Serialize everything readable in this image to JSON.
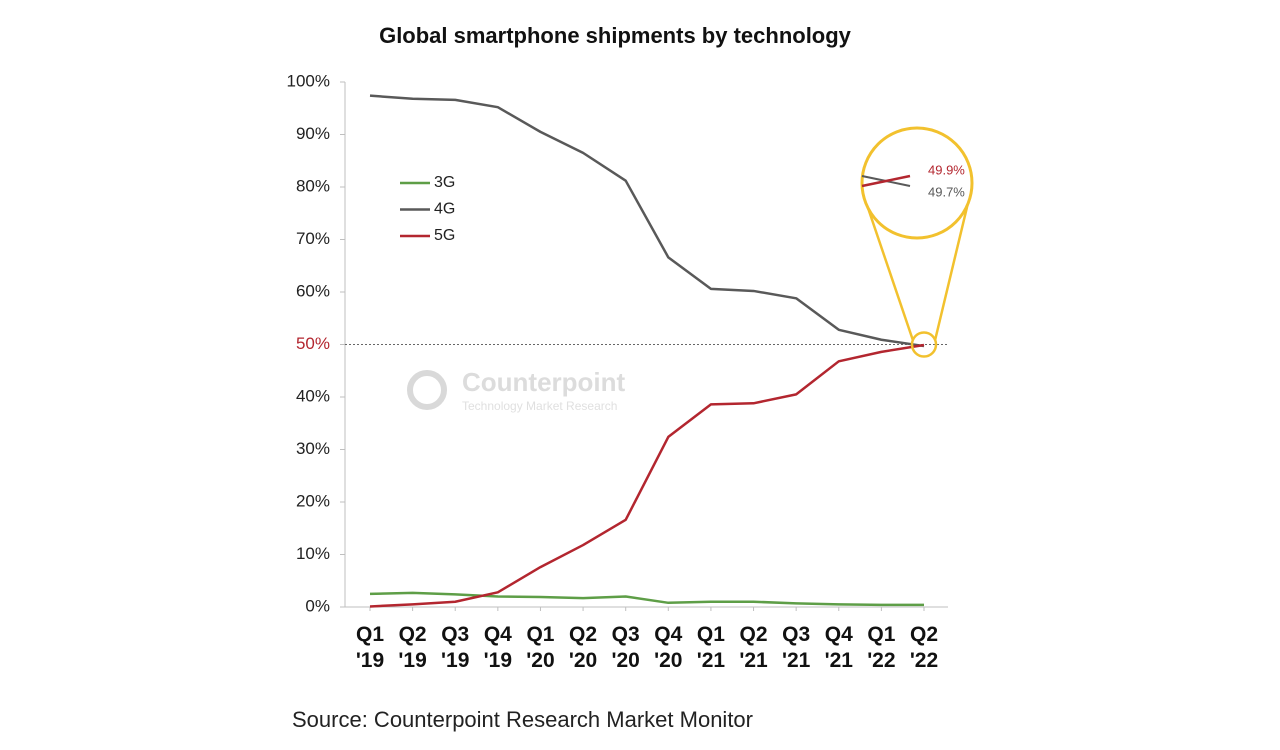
{
  "chart_data": {
    "type": "line",
    "title": "Global smartphone shipments by technology",
    "source": "Source: Counterpoint Research Market Monitor",
    "watermark": {
      "name": "Counterpoint",
      "tagline": "Technology Market Research"
    },
    "categories": [
      "Q1 '19",
      "Q2 '19",
      "Q3 '19",
      "Q4 '19",
      "Q1 '20",
      "Q2 '20",
      "Q3 '20",
      "Q4 '20",
      "Q1 '21",
      "Q2 '21",
      "Q3 '21",
      "Q4 '21",
      "Q1 '22",
      "Q2 '22"
    ],
    "series": [
      {
        "name": "3G",
        "color": "#5e9e47",
        "values": [
          2.5,
          2.7,
          2.4,
          2.0,
          1.9,
          1.7,
          2.0,
          0.8,
          1.0,
          1.0,
          0.7,
          0.5,
          0.4,
          0.4
        ]
      },
      {
        "name": "4G",
        "color": "#595959",
        "values": [
          97.4,
          96.8,
          96.6,
          95.2,
          90.5,
          86.5,
          81.2,
          66.6,
          60.6,
          60.2,
          58.8,
          52.8,
          50.9,
          49.7
        ],
        "value_labels": [
          null,
          null,
          null,
          null,
          null,
          null,
          null,
          null,
          null,
          null,
          null,
          null,
          null,
          "49.7%"
        ]
      },
      {
        "name": "5G",
        "color": "#b3262f",
        "values": [
          0.1,
          0.5,
          1.0,
          2.8,
          7.6,
          11.8,
          16.6,
          32.4,
          38.6,
          38.8,
          40.5,
          46.8,
          48.6,
          49.9
        ],
        "value_labels": [
          null,
          null,
          null,
          null,
          null,
          null,
          null,
          null,
          null,
          null,
          null,
          null,
          null,
          "49.9%"
        ]
      }
    ],
    "ylim": [
      0,
      100
    ],
    "yticks": [
      {
        "value": 0,
        "label": "0%"
      },
      {
        "value": 10,
        "label": "10%"
      },
      {
        "value": 20,
        "label": "20%"
      },
      {
        "value": 30,
        "label": "30%"
      },
      {
        "value": 40,
        "label": "40%"
      },
      {
        "value": 50,
        "label": "50%"
      },
      {
        "value": 60,
        "label": "60%"
      },
      {
        "value": 70,
        "label": "70%"
      },
      {
        "value": 80,
        "label": "80%"
      },
      {
        "value": 90,
        "label": "90%"
      },
      {
        "value": 100,
        "label": "100%"
      }
    ],
    "reference_line": 50,
    "reference_color": "#b3262f",
    "highlight_color": "#f2c12e",
    "grid": false,
    "legend": "upper left"
  }
}
